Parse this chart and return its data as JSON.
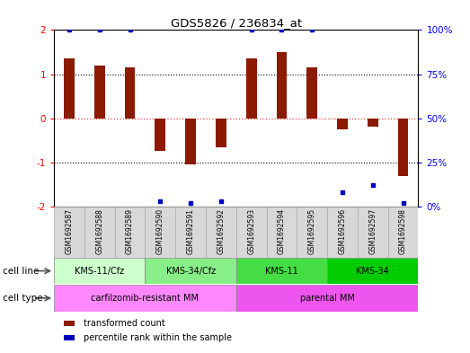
{
  "title": "GDS5826 / 236834_at",
  "samples": [
    "GSM1692587",
    "GSM1692588",
    "GSM1692589",
    "GSM1692590",
    "GSM1692591",
    "GSM1692592",
    "GSM1692593",
    "GSM1692594",
    "GSM1692595",
    "GSM1692596",
    "GSM1692597",
    "GSM1692598"
  ],
  "transformed_count": [
    1.35,
    1.2,
    1.15,
    -0.75,
    -1.05,
    -0.65,
    1.35,
    1.5,
    1.15,
    -0.25,
    -0.2,
    -1.3
  ],
  "percentile_rank": [
    100,
    100,
    100,
    3,
    2,
    3,
    100,
    100,
    100,
    8,
    12,
    2
  ],
  "ylim": [
    -2,
    2
  ],
  "y2lim": [
    0,
    100
  ],
  "yticks": [
    -2,
    -1,
    0,
    1,
    2
  ],
  "y2ticks": [
    0,
    25,
    50,
    75,
    100
  ],
  "ytick_labels": [
    "-2",
    "-1",
    "0",
    "1",
    "2"
  ],
  "y2tick_labels": [
    "0%",
    "25%",
    "50%",
    "75%",
    "100%"
  ],
  "bar_color": "#8B1A00",
  "dot_color": "#0000BB",
  "hline_color_red": "#FF4444",
  "hline_color_black": "#000000",
  "cell_line_groups": [
    {
      "label": "KMS-11/Cfz",
      "start": 0,
      "end": 3,
      "color": "#CCFFCC"
    },
    {
      "label": "KMS-34/Cfz",
      "start": 3,
      "end": 6,
      "color": "#88EE88"
    },
    {
      "label": "KMS-11",
      "start": 6,
      "end": 9,
      "color": "#44DD44"
    },
    {
      "label": "KMS-34",
      "start": 9,
      "end": 12,
      "color": "#00CC00"
    }
  ],
  "cell_type_groups": [
    {
      "label": "carfilzomib-resistant MM",
      "start": 0,
      "end": 6,
      "color": "#FF88FF"
    },
    {
      "label": "parental MM",
      "start": 6,
      "end": 12,
      "color": "#EE55EE"
    }
  ],
  "cell_line_label": "cell line",
  "cell_type_label": "cell type",
  "legend_items": [
    {
      "color": "#8B1A00",
      "label": "transformed count"
    },
    {
      "color": "#0000BB",
      "label": "percentile rank within the sample"
    }
  ],
  "sample_box_color": "#D8D8D8",
  "sample_box_edge": "#AAAAAA"
}
